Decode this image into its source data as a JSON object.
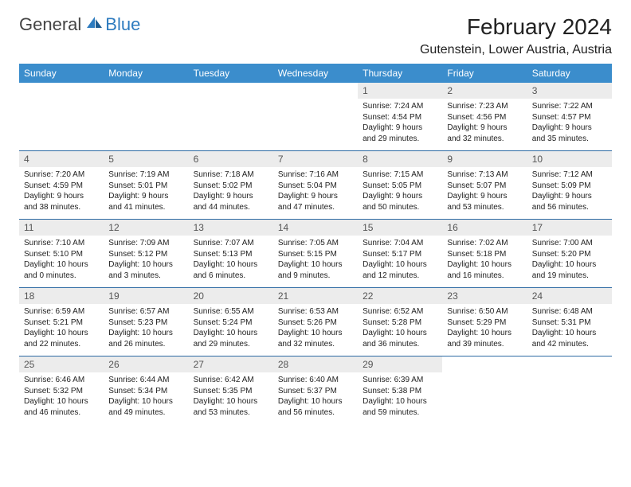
{
  "logo": {
    "text1": "General",
    "text2": "Blue"
  },
  "title": "February 2024",
  "location": "Gutenstein, Lower Austria, Austria",
  "colors": {
    "header_bg": "#3b8dcc",
    "header_fg": "#ffffff",
    "daynum_bg": "#ececec",
    "daynum_fg": "#555555",
    "rule": "#2d6aa3",
    "logo_blue": "#2d7bbf",
    "text": "#222222"
  },
  "days_of_week": [
    "Sunday",
    "Monday",
    "Tuesday",
    "Wednesday",
    "Thursday",
    "Friday",
    "Saturday"
  ],
  "weeks": [
    [
      null,
      null,
      null,
      null,
      {
        "n": "1",
        "sunrise": "7:24 AM",
        "sunset": "4:54 PM",
        "daylight": "9 hours and 29 minutes."
      },
      {
        "n": "2",
        "sunrise": "7:23 AM",
        "sunset": "4:56 PM",
        "daylight": "9 hours and 32 minutes."
      },
      {
        "n": "3",
        "sunrise": "7:22 AM",
        "sunset": "4:57 PM",
        "daylight": "9 hours and 35 minutes."
      }
    ],
    [
      {
        "n": "4",
        "sunrise": "7:20 AM",
        "sunset": "4:59 PM",
        "daylight": "9 hours and 38 minutes."
      },
      {
        "n": "5",
        "sunrise": "7:19 AM",
        "sunset": "5:01 PM",
        "daylight": "9 hours and 41 minutes."
      },
      {
        "n": "6",
        "sunrise": "7:18 AM",
        "sunset": "5:02 PM",
        "daylight": "9 hours and 44 minutes."
      },
      {
        "n": "7",
        "sunrise": "7:16 AM",
        "sunset": "5:04 PM",
        "daylight": "9 hours and 47 minutes."
      },
      {
        "n": "8",
        "sunrise": "7:15 AM",
        "sunset": "5:05 PM",
        "daylight": "9 hours and 50 minutes."
      },
      {
        "n": "9",
        "sunrise": "7:13 AM",
        "sunset": "5:07 PM",
        "daylight": "9 hours and 53 minutes."
      },
      {
        "n": "10",
        "sunrise": "7:12 AM",
        "sunset": "5:09 PM",
        "daylight": "9 hours and 56 minutes."
      }
    ],
    [
      {
        "n": "11",
        "sunrise": "7:10 AM",
        "sunset": "5:10 PM",
        "daylight": "10 hours and 0 minutes."
      },
      {
        "n": "12",
        "sunrise": "7:09 AM",
        "sunset": "5:12 PM",
        "daylight": "10 hours and 3 minutes."
      },
      {
        "n": "13",
        "sunrise": "7:07 AM",
        "sunset": "5:13 PM",
        "daylight": "10 hours and 6 minutes."
      },
      {
        "n": "14",
        "sunrise": "7:05 AM",
        "sunset": "5:15 PM",
        "daylight": "10 hours and 9 minutes."
      },
      {
        "n": "15",
        "sunrise": "7:04 AM",
        "sunset": "5:17 PM",
        "daylight": "10 hours and 12 minutes."
      },
      {
        "n": "16",
        "sunrise": "7:02 AM",
        "sunset": "5:18 PM",
        "daylight": "10 hours and 16 minutes."
      },
      {
        "n": "17",
        "sunrise": "7:00 AM",
        "sunset": "5:20 PM",
        "daylight": "10 hours and 19 minutes."
      }
    ],
    [
      {
        "n": "18",
        "sunrise": "6:59 AM",
        "sunset": "5:21 PM",
        "daylight": "10 hours and 22 minutes."
      },
      {
        "n": "19",
        "sunrise": "6:57 AM",
        "sunset": "5:23 PM",
        "daylight": "10 hours and 26 minutes."
      },
      {
        "n": "20",
        "sunrise": "6:55 AM",
        "sunset": "5:24 PM",
        "daylight": "10 hours and 29 minutes."
      },
      {
        "n": "21",
        "sunrise": "6:53 AM",
        "sunset": "5:26 PM",
        "daylight": "10 hours and 32 minutes."
      },
      {
        "n": "22",
        "sunrise": "6:52 AM",
        "sunset": "5:28 PM",
        "daylight": "10 hours and 36 minutes."
      },
      {
        "n": "23",
        "sunrise": "6:50 AM",
        "sunset": "5:29 PM",
        "daylight": "10 hours and 39 minutes."
      },
      {
        "n": "24",
        "sunrise": "6:48 AM",
        "sunset": "5:31 PM",
        "daylight": "10 hours and 42 minutes."
      }
    ],
    [
      {
        "n": "25",
        "sunrise": "6:46 AM",
        "sunset": "5:32 PM",
        "daylight": "10 hours and 46 minutes."
      },
      {
        "n": "26",
        "sunrise": "6:44 AM",
        "sunset": "5:34 PM",
        "daylight": "10 hours and 49 minutes."
      },
      {
        "n": "27",
        "sunrise": "6:42 AM",
        "sunset": "5:35 PM",
        "daylight": "10 hours and 53 minutes."
      },
      {
        "n": "28",
        "sunrise": "6:40 AM",
        "sunset": "5:37 PM",
        "daylight": "10 hours and 56 minutes."
      },
      {
        "n": "29",
        "sunrise": "6:39 AM",
        "sunset": "5:38 PM",
        "daylight": "10 hours and 59 minutes."
      },
      null,
      null
    ]
  ],
  "labels": {
    "sunrise": "Sunrise: ",
    "sunset": "Sunset: ",
    "daylight": "Daylight: "
  }
}
